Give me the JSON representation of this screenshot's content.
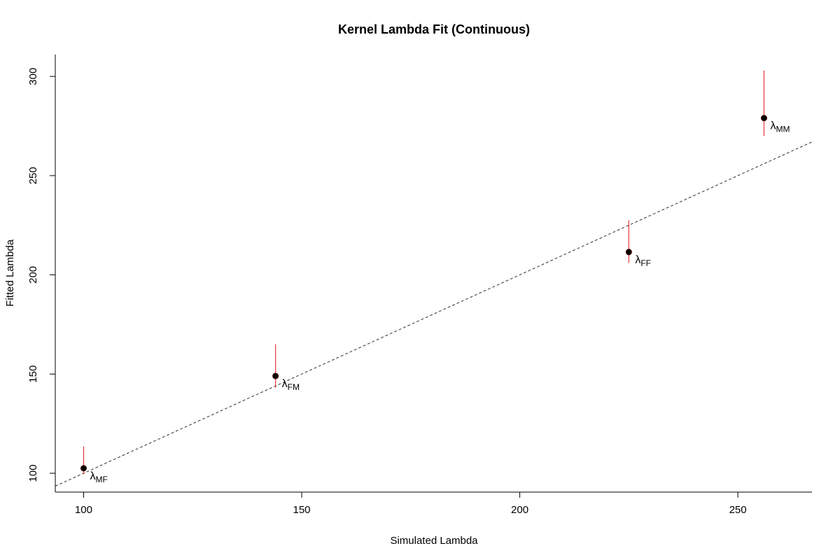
{
  "chart_data": {
    "type": "scatter",
    "title": "Kernel Lambda Fit (Continuous)",
    "xlabel": "Simulated Lambda",
    "ylabel": "Fitted Lambda",
    "xlim": [
      93.5,
      267
    ],
    "ylim": [
      90.5,
      311
    ],
    "x_ticks": [
      100,
      150,
      200,
      250
    ],
    "y_ticks": [
      100,
      150,
      200,
      250,
      300
    ],
    "reference_line": {
      "style": "dashed",
      "slope": 1,
      "intercept": 0,
      "color": "#333333"
    },
    "grid": false,
    "point_color": "#000000",
    "error_bar_color": "#e8383d",
    "points": [
      {
        "label": "λ",
        "sub": "MF",
        "x": 100,
        "y": 102.5,
        "lower": 99.5,
        "upper": 113.5
      },
      {
        "label": "λ",
        "sub": "FM",
        "x": 144,
        "y": 149,
        "lower": 143,
        "upper": 165
      },
      {
        "label": "λ",
        "sub": "FF",
        "x": 225,
        "y": 211.5,
        "lower": 206,
        "upper": 227.5
      },
      {
        "label": "λ",
        "sub": "MM",
        "x": 256,
        "y": 279,
        "lower": 270,
        "upper": 303
      }
    ]
  }
}
